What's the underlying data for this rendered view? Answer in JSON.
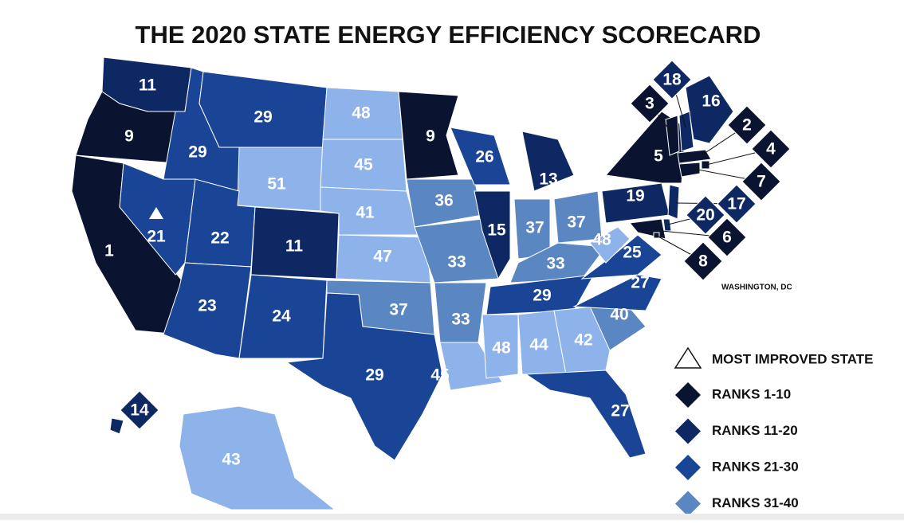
{
  "title": "THE 2020 STATE ENERGY EFFICIENCY SCORECARD",
  "annotation": "WASHINGTON, DC",
  "states": [
    {
      "rank": 11,
      "color": "#0e2864"
    },
    {
      "rank": 9,
      "color": "#0a1430"
    },
    {
      "rank": 1,
      "color": "#0a1430"
    },
    {
      "rank": 29,
      "color": "#1a4596"
    },
    {
      "rank": 21,
      "color": "#1a4596"
    },
    {
      "rank": 29,
      "color": "#1a4596"
    },
    {
      "rank": 51,
      "color": "#8db3ea"
    },
    {
      "rank": 22,
      "color": "#1a4596"
    },
    {
      "rank": 11,
      "color": "#0e2864"
    },
    {
      "rank": 23,
      "color": "#1a4596"
    },
    {
      "rank": 24,
      "color": "#1a4596"
    },
    {
      "rank": 48,
      "color": "#8db3ea"
    },
    {
      "rank": 45,
      "color": "#8db3ea"
    },
    {
      "rank": 41,
      "color": "#8db3ea"
    },
    {
      "rank": 47,
      "color": "#8db3ea"
    },
    {
      "rank": 37,
      "color": "#5a86c2"
    },
    {
      "rank": 29,
      "color": "#1a4596"
    },
    {
      "rank": 9,
      "color": "#0a1430"
    },
    {
      "rank": 36,
      "color": "#5a86c2"
    },
    {
      "rank": 33,
      "color": "#5a86c2"
    },
    {
      "rank": 33,
      "color": "#5a86c2"
    },
    {
      "rank": 45,
      "color": "#8db3ea"
    },
    {
      "rank": 26,
      "color": "#1a4596"
    },
    {
      "rank": 15,
      "color": "#0e2864"
    },
    {
      "rank": 13,
      "color": "#0e2864"
    },
    {
      "rank": 37,
      "color": "#5a86c2"
    },
    {
      "rank": 37,
      "color": "#5a86c2"
    },
    {
      "rank": 33,
      "color": "#5a86c2"
    },
    {
      "rank": 29,
      "color": "#1a4596"
    },
    {
      "rank": 48,
      "color": "#8db3ea"
    },
    {
      "rank": 44,
      "color": "#8db3ea"
    },
    {
      "rank": 42,
      "color": "#8db3ea"
    },
    {
      "rank": 27,
      "color": "#1a4596"
    },
    {
      "rank": 40,
      "color": "#5a86c2"
    },
    {
      "rank": 27,
      "color": "#1a4596"
    },
    {
      "rank": 25,
      "color": "#1a4596"
    },
    {
      "rank": 48,
      "color": "#8db3ea"
    },
    {
      "rank": 19,
      "color": "#0e2864"
    },
    {
      "rank": 5,
      "color": "#0a1430"
    },
    {
      "rank": 16,
      "color": "#0e2864"
    },
    {
      "rank": 43,
      "color": "#8db3ea"
    },
    {
      "rank": 14,
      "color": "#0e2864"
    },
    {
      "rank": 3,
      "color": "#0a1430"
    },
    {
      "rank": 18,
      "color": "#0e2864"
    },
    {
      "rank": 2,
      "color": "#0a1430"
    },
    {
      "rank": 4,
      "color": "#0a1430"
    },
    {
      "rank": 7,
      "color": "#0a1430"
    },
    {
      "rank": 17,
      "color": "#0e2864"
    },
    {
      "rank": 20,
      "color": "#0e2864"
    },
    {
      "rank": 6,
      "color": "#0a1430"
    },
    {
      "rank": 8,
      "color": "#0a1430"
    }
  ],
  "legend": {
    "most_improved": "MOST IMPROVED STATE",
    "items": [
      {
        "label": "RANKS 1-10",
        "color": "#0a1430"
      },
      {
        "label": "RANKS 11-20",
        "color": "#0e2864"
      },
      {
        "label": "RANKS 21-30",
        "color": "#1a4596"
      },
      {
        "label": "RANKS 31-40",
        "color": "#5a86c2"
      }
    ]
  }
}
